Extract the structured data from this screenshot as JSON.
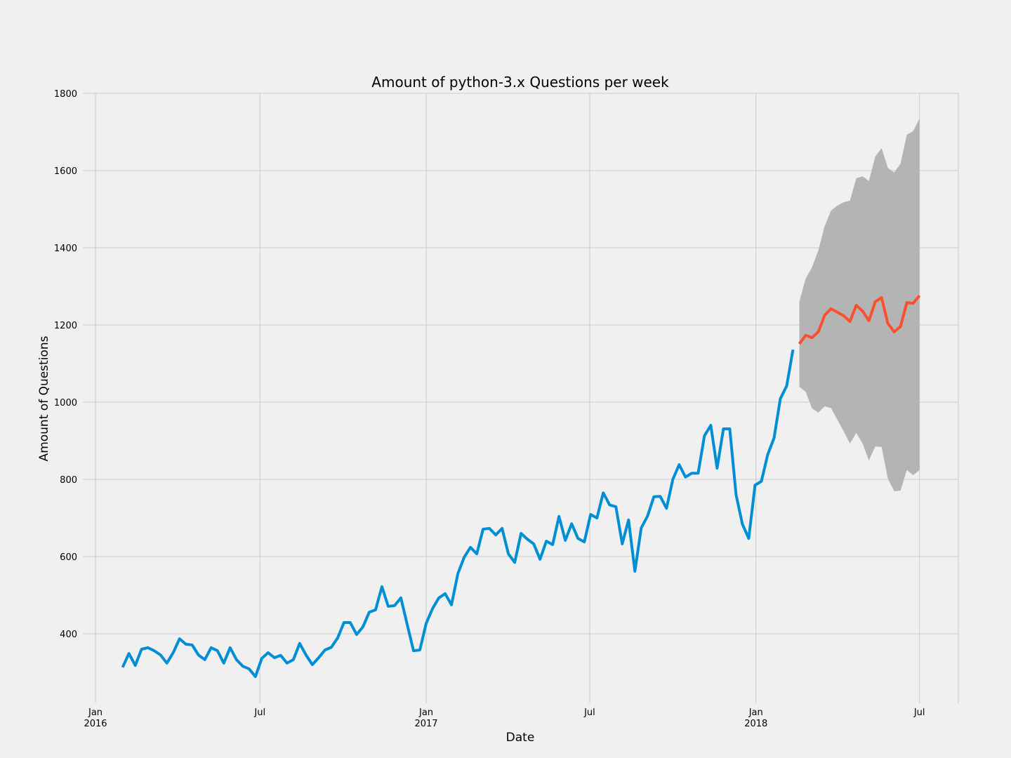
{
  "chart_data": {
    "type": "line",
    "title": "Amount of python-3.x Questions per week",
    "x_label": "Date",
    "y_label": "Amount of Questions",
    "xlim": [
      "2015-12-18",
      "2018-08-13"
    ],
    "xticks": [
      {
        "value": "2016-01-01",
        "label": [
          "Jan",
          "2016"
        ]
      },
      {
        "value": "2016-07-01",
        "label": [
          "Jul"
        ]
      },
      {
        "value": "2017-01-01",
        "label": [
          "Jan",
          "2017"
        ]
      },
      {
        "value": "2017-07-01",
        "label": [
          "Jul"
        ]
      },
      {
        "value": "2018-01-01",
        "label": [
          "Jan",
          "2018"
        ]
      },
      {
        "value": "2018-07-01",
        "label": [
          "Jul"
        ]
      }
    ],
    "ylim": [
      220,
      1800
    ],
    "yticks": [
      400,
      600,
      800,
      1000,
      1200,
      1400,
      1600,
      1800
    ],
    "grid": true,
    "series": [
      {
        "color": "#008fd5",
        "x": [
          "2016-01-31",
          "2016-02-07",
          "2016-02-14",
          "2016-02-21",
          "2016-02-28",
          "2016-03-06",
          "2016-03-13",
          "2016-03-20",
          "2016-03-27",
          "2016-04-03",
          "2016-04-10",
          "2016-04-17",
          "2016-04-24",
          "2016-05-01",
          "2016-05-08",
          "2016-05-15",
          "2016-05-22",
          "2016-05-29",
          "2016-06-05",
          "2016-06-12",
          "2016-06-19",
          "2016-06-26",
          "2016-07-03",
          "2016-07-10",
          "2016-07-17",
          "2016-07-24",
          "2016-07-31",
          "2016-08-07",
          "2016-08-14",
          "2016-08-21",
          "2016-08-28",
          "2016-09-04",
          "2016-09-11",
          "2016-09-18",
          "2016-09-25",
          "2016-10-02",
          "2016-10-09",
          "2016-10-16",
          "2016-10-23",
          "2016-10-30",
          "2016-11-06",
          "2016-11-13",
          "2016-11-20",
          "2016-11-27",
          "2016-12-04",
          "2016-12-11",
          "2016-12-18",
          "2016-12-25",
          "2017-01-01",
          "2017-01-08",
          "2017-01-15",
          "2017-01-22",
          "2017-01-29",
          "2017-02-05",
          "2017-02-12",
          "2017-02-19",
          "2017-02-26",
          "2017-03-05",
          "2017-03-12",
          "2017-03-19",
          "2017-03-26",
          "2017-04-02",
          "2017-04-09",
          "2017-04-16",
          "2017-04-23",
          "2017-04-30",
          "2017-05-07",
          "2017-05-14",
          "2017-05-21",
          "2017-05-28",
          "2017-06-04",
          "2017-06-11",
          "2017-06-18",
          "2017-06-25",
          "2017-07-02",
          "2017-07-09",
          "2017-07-16",
          "2017-07-23",
          "2017-07-30",
          "2017-08-06",
          "2017-08-13",
          "2017-08-20",
          "2017-08-27",
          "2017-09-03",
          "2017-09-10",
          "2017-09-17",
          "2017-09-24",
          "2017-10-01",
          "2017-10-08",
          "2017-10-15",
          "2017-10-22",
          "2017-10-29",
          "2017-11-05",
          "2017-11-12",
          "2017-11-19",
          "2017-11-26",
          "2017-12-03",
          "2017-12-10",
          "2017-12-17",
          "2017-12-24",
          "2017-12-31",
          "2018-01-07",
          "2018-01-14",
          "2018-01-21",
          "2018-01-28",
          "2018-02-04",
          "2018-02-11"
        ],
        "values": [
          313,
          349,
          318,
          360,
          364,
          356,
          345,
          324,
          351,
          387,
          373,
          371,
          345,
          333,
          364,
          356,
          324,
          364,
          333,
          316,
          309,
          289,
          336,
          351,
          338,
          344,
          324,
          333,
          375,
          345,
          320,
          338,
          358,
          365,
          389,
          429,
          429,
          398,
          418,
          456,
          462,
          522,
          471,
          473,
          493,
          424,
          356,
          358,
          427,
          465,
          493,
          504,
          475,
          555,
          598,
          624,
          607,
          671,
          673,
          656,
          673,
          607,
          585,
          660,
          645,
          633,
          593,
          640,
          631,
          704,
          642,
          685,
          647,
          638,
          709,
          700,
          765,
          734,
          729,
          633,
          695,
          562,
          674,
          705,
          755,
          756,
          725,
          800,
          838,
          806,
          816,
          816,
          913,
          940,
          829,
          931,
          931,
          760,
          684,
          647,
          785,
          795,
          864,
          907,
          1009,
          1042,
          1136
        ]
      },
      {
        "color": "#fc4f30",
        "band_color": "#b4b4b4",
        "x": [
          "2018-02-18",
          "2018-02-25",
          "2018-03-04",
          "2018-03-11",
          "2018-03-18",
          "2018-03-25",
          "2018-04-01",
          "2018-04-08",
          "2018-04-15",
          "2018-04-22",
          "2018-04-29",
          "2018-05-06",
          "2018-05-13",
          "2018-05-20",
          "2018-05-27",
          "2018-06-03",
          "2018-06-10",
          "2018-06-17",
          "2018-06-24",
          "2018-07-01"
        ],
        "values": [
          1151,
          1173,
          1167,
          1182,
          1225,
          1242,
          1233,
          1224,
          1209,
          1251,
          1236,
          1211,
          1260,
          1271,
          1204,
          1182,
          1196,
          1258,
          1256,
          1276
        ],
        "upper": [
          1260,
          1320,
          1349,
          1393,
          1456,
          1496,
          1509,
          1518,
          1522,
          1580,
          1585,
          1573,
          1636,
          1658,
          1607,
          1595,
          1618,
          1693,
          1702,
          1735
        ],
        "lower": [
          1040,
          1027,
          984,
          973,
          989,
          985,
          955,
          925,
          893,
          920,
          893,
          849,
          885,
          884,
          802,
          769,
          771,
          824,
          811,
          824
        ]
      }
    ]
  }
}
